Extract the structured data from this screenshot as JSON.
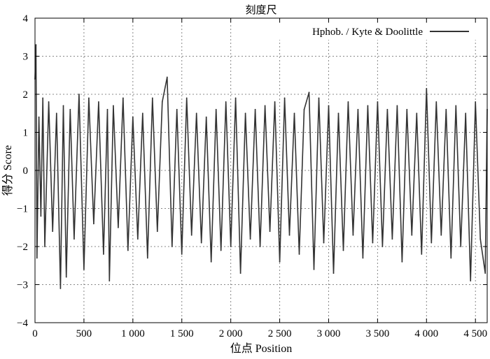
{
  "chart_data": {
    "type": "line",
    "title": "刻度尺",
    "xlabel": "位点 Position",
    "ylabel": "得分 Score",
    "xlim": [
      0,
      4620
    ],
    "ylim": [
      -4,
      4
    ],
    "x_ticks": [
      0,
      500,
      1000,
      1500,
      2000,
      2500,
      3000,
      3500,
      4000,
      4500
    ],
    "x_tick_labels": [
      "0",
      "500",
      "1 000",
      "1 500",
      "2 000",
      "2 500",
      "3 000",
      "3 500",
      "4 000",
      "4 500"
    ],
    "y_ticks": [
      -4,
      -3,
      -2,
      -1,
      0,
      1,
      2,
      3,
      4
    ],
    "y_tick_labels": [
      "−4",
      "−3",
      "−2",
      "−1",
      "0",
      "1",
      "2",
      "3",
      "4"
    ],
    "grid": true,
    "legend_position": "top-right",
    "series": [
      {
        "name": "Hphob. / Kyte & Doolittle",
        "color": "#333333",
        "x": [
          0,
          10,
          20,
          40,
          60,
          80,
          100,
          140,
          180,
          220,
          260,
          290,
          320,
          360,
          400,
          450,
          500,
          550,
          600,
          650,
          700,
          740,
          760,
          800,
          850,
          900,
          950,
          1000,
          1050,
          1100,
          1150,
          1200,
          1250,
          1300,
          1350,
          1400,
          1450,
          1500,
          1550,
          1600,
          1650,
          1700,
          1750,
          1800,
          1850,
          1900,
          1950,
          2000,
          2050,
          2100,
          2150,
          2200,
          2250,
          2300,
          2350,
          2400,
          2450,
          2500,
          2550,
          2600,
          2650,
          2700,
          2750,
          2800,
          2850,
          2900,
          2950,
          3000,
          3050,
          3100,
          3150,
          3200,
          3250,
          3300,
          3350,
          3400,
          3450,
          3500,
          3550,
          3600,
          3650,
          3700,
          3750,
          3800,
          3850,
          3900,
          3950,
          4000,
          4050,
          4100,
          4150,
          4200,
          4250,
          4300,
          4350,
          4400,
          4450,
          4500,
          4550,
          4600,
          4620
        ],
        "y": [
          2.4,
          3.3,
          -2.3,
          1.4,
          -1.2,
          1.9,
          -2.0,
          1.8,
          -1.6,
          1.5,
          -3.1,
          1.7,
          -2.8,
          1.6,
          -1.8,
          2.0,
          -2.6,
          1.9,
          -1.4,
          1.8,
          -2.2,
          1.6,
          -2.9,
          1.7,
          -1.5,
          1.9,
          -2.1,
          1.4,
          -1.8,
          1.5,
          -2.3,
          1.9,
          -1.6,
          1.8,
          2.45,
          -2.0,
          1.6,
          -2.2,
          1.9,
          -1.7,
          1.5,
          -1.9,
          1.4,
          -2.4,
          1.6,
          -2.1,
          1.8,
          -2.0,
          1.9,
          -2.7,
          1.5,
          -1.8,
          1.6,
          -2.0,
          1.7,
          -1.6,
          1.8,
          -2.4,
          1.9,
          -1.7,
          1.5,
          -2.2,
          1.6,
          2.05,
          -2.6,
          1.9,
          -1.9,
          1.7,
          -2.7,
          1.5,
          -2.1,
          1.8,
          -1.7,
          1.6,
          -2.3,
          1.7,
          -1.9,
          1.8,
          -2.0,
          1.6,
          -1.8,
          1.7,
          -2.4,
          1.6,
          -1.7,
          1.5,
          -2.2,
          2.15,
          -1.9,
          1.8,
          -1.7,
          1.6,
          -2.3,
          1.7,
          -2.0,
          1.5,
          -2.9,
          1.8,
          -1.8,
          -2.7,
          1.6
        ]
      }
    ]
  }
}
